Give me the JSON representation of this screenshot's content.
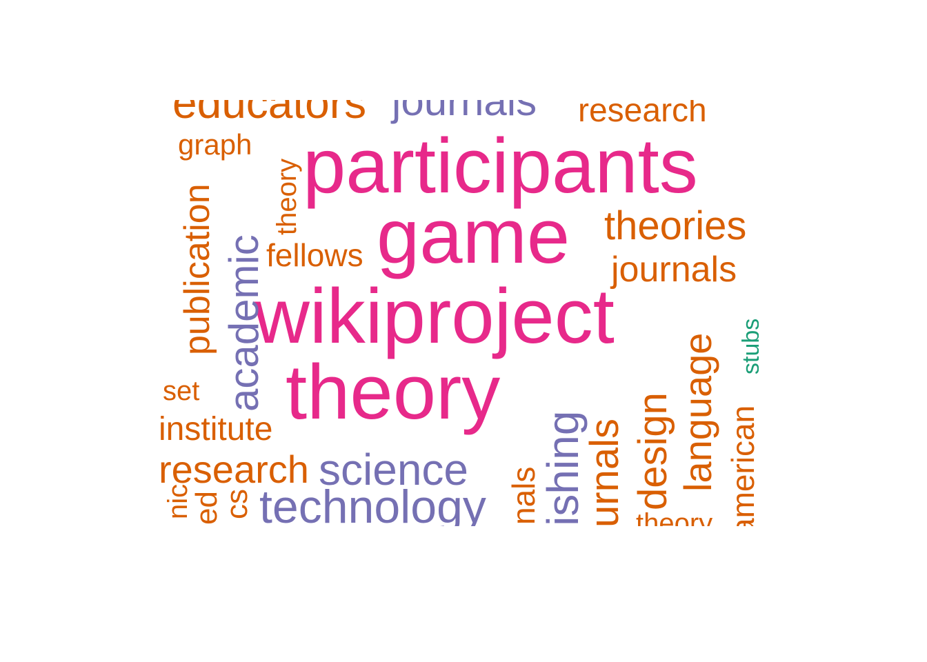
{
  "colors": {
    "magenta": "#e7298a",
    "orange": "#d95f02",
    "purple": "#7570b3",
    "green": "#1b9e77"
  },
  "words": [
    "participants",
    "game",
    "wikiproject",
    "theory",
    "educators",
    "journals",
    "research",
    "graph",
    "theory",
    "publication",
    "academic",
    "fellows",
    "theories",
    "journals",
    "stubs",
    "language",
    "american",
    "design",
    "urnals",
    "lishing",
    "nals",
    "set",
    "institute",
    "research",
    "science",
    "technology",
    "nic",
    "ed",
    "cs",
    "theory"
  ]
}
